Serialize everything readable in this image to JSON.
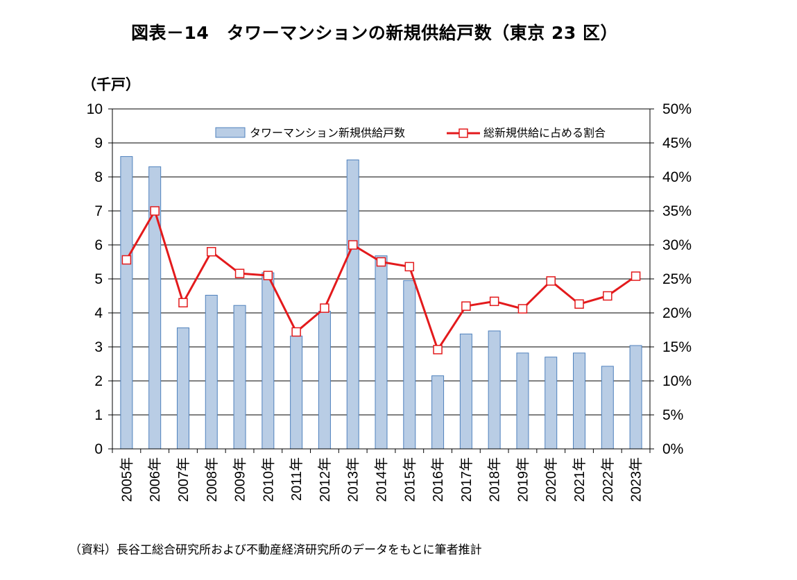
{
  "title": "図表－14　タワーマンションの新規供給戸数（東京 23 区）",
  "unit_label": "（千戸）",
  "source_note": "（資料）長谷工総合研究所および不動産経済研究所のデータをもとに筆者推計",
  "colors": {
    "bar_fill": "#b9cde5",
    "bar_stroke": "#4f81bd",
    "line": "#e31a1c",
    "marker_fill": "#ffffff",
    "grid": "#000000"
  },
  "chart_data": {
    "type": "bar",
    "categories": [
      "2005年",
      "2006年",
      "2007年",
      "2008年",
      "2009年",
      "2010年",
      "2011年",
      "2012年",
      "2013年",
      "2014年",
      "2015年",
      "2016年",
      "2017年",
      "2018年",
      "2019年",
      "2020年",
      "2021年",
      "2022年",
      "2023年"
    ],
    "series": [
      {
        "name": "タワーマンション新規供給戸数",
        "type": "bar",
        "axis": "left",
        "values": [
          8.6,
          8.3,
          3.56,
          4.52,
          4.22,
          5.18,
          3.32,
          4.05,
          8.5,
          5.68,
          4.95,
          2.15,
          3.38,
          3.47,
          2.82,
          2.7,
          2.82,
          2.43,
          3.04
        ]
      },
      {
        "name": "総新規供給に占める割合",
        "type": "line",
        "axis": "right",
        "values": [
          27.8,
          35.0,
          21.5,
          29.0,
          25.8,
          25.5,
          17.2,
          20.7,
          30.0,
          27.5,
          26.8,
          14.6,
          21.0,
          21.7,
          20.6,
          24.7,
          21.3,
          22.5,
          25.4
        ]
      }
    ],
    "y_left": {
      "min": 0,
      "max": 10,
      "step": 1,
      "ticks": [
        "0",
        "1",
        "2",
        "3",
        "4",
        "5",
        "6",
        "7",
        "8",
        "9",
        "10"
      ]
    },
    "y_right": {
      "min": 0,
      "max": 50,
      "step": 5,
      "ticks": [
        "0%",
        "5%",
        "10%",
        "15%",
        "20%",
        "25%",
        "30%",
        "35%",
        "40%",
        "45%",
        "50%"
      ]
    },
    "grid": true,
    "legend_position": "top-right"
  }
}
